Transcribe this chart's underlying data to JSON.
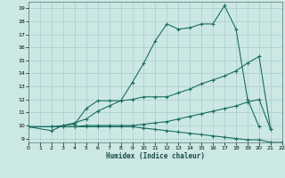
{
  "xlabel": "Humidex (Indice chaleur)",
  "x_values": [
    0,
    1,
    2,
    3,
    4,
    5,
    6,
    7,
    8,
    9,
    10,
    11,
    12,
    13,
    14,
    15,
    16,
    17,
    18,
    19,
    20,
    21,
    22
  ],
  "series": [
    {
      "y": [
        9.9,
        null,
        9.6,
        10.0,
        10.1,
        11.3,
        11.9,
        11.9,
        11.9,
        13.3,
        14.8,
        16.5,
        17.8,
        17.4,
        17.5,
        17.8,
        17.8,
        19.2,
        17.4,
        12.0,
        9.9,
        null,
        null
      ]
    },
    {
      "y": [
        9.9,
        null,
        9.9,
        10.0,
        10.2,
        10.5,
        11.1,
        11.5,
        11.9,
        12.0,
        12.2,
        12.2,
        12.2,
        12.5,
        12.8,
        13.2,
        13.5,
        13.8,
        14.2,
        14.8,
        15.3,
        9.7,
        null
      ]
    },
    {
      "y": [
        9.9,
        null,
        9.9,
        9.9,
        9.9,
        9.9,
        9.9,
        9.9,
        9.9,
        9.9,
        9.8,
        9.7,
        9.6,
        9.5,
        9.4,
        9.3,
        9.2,
        9.1,
        9.0,
        8.9,
        8.9,
        8.7,
        8.7
      ]
    },
    {
      "y": [
        9.9,
        null,
        9.9,
        9.9,
        9.9,
        10.0,
        10.0,
        10.0,
        10.0,
        10.0,
        10.1,
        10.2,
        10.3,
        10.5,
        10.7,
        10.9,
        11.1,
        11.3,
        11.5,
        11.8,
        12.0,
        9.7,
        null
      ]
    }
  ],
  "xlim": [
    0,
    22
  ],
  "ylim": [
    8.7,
    19.5
  ],
  "yticks": [
    9,
    10,
    11,
    12,
    13,
    14,
    15,
    16,
    17,
    18,
    19
  ],
  "xticks": [
    0,
    1,
    2,
    3,
    4,
    5,
    6,
    7,
    8,
    9,
    10,
    11,
    12,
    13,
    14,
    15,
    16,
    17,
    18,
    19,
    20,
    21,
    22
  ],
  "bg_color": "#cce8e4",
  "grid_color": "#aaccca",
  "line_color": "#1a6e62",
  "marker": "+",
  "markersize": 3,
  "linewidth": 0.8
}
